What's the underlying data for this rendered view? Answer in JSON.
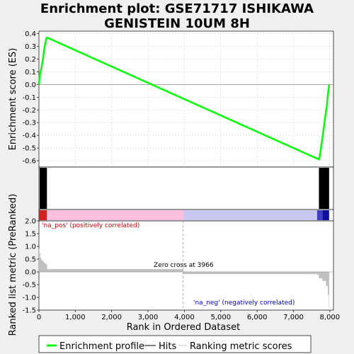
{
  "title_line1": "Enrichment plot: GSE71717 ISHIKAWA",
  "title_line2": "GENISTEIN 10UM 8H",
  "chart_data": [
    {
      "type": "line",
      "panel": "enrichment",
      "ylabel": "Enrichment score (ES)",
      "ylim": [
        -0.65,
        0.42
      ],
      "yticks": [
        "0.4",
        "0.3",
        "0.2",
        "0.1",
        "0.0",
        "-0.1",
        "-0.2",
        "-0.3",
        "-0.4",
        "-0.5",
        "-0.6"
      ],
      "ytick_values": [
        0.4,
        0.3,
        0.2,
        0.1,
        0.0,
        -0.1,
        -0.2,
        -0.3,
        -0.4,
        -0.5,
        -0.6
      ],
      "xlim": [
        0,
        8100
      ],
      "color": "#00ff00",
      "series": [
        {
          "name": "Enrichment profile",
          "x": [
            0,
            20,
            40,
            60,
            80,
            100,
            120,
            140,
            160,
            180,
            200,
            220,
            7700,
            7720,
            7740,
            7760,
            7780,
            7800,
            7820,
            7840,
            7860,
            7880,
            7900,
            7920,
            7940,
            7960,
            7980
          ],
          "y": [
            0.0,
            0.06,
            0.1,
            0.12,
            0.15,
            0.18,
            0.22,
            0.27,
            0.3,
            0.33,
            0.36,
            0.37,
            -0.59,
            -0.57,
            -0.53,
            -0.49,
            -0.45,
            -0.41,
            -0.37,
            -0.33,
            -0.28,
            -0.24,
            -0.2,
            -0.16,
            -0.1,
            -0.05,
            0.0
          ]
        }
      ],
      "grid": true
    },
    {
      "type": "bar",
      "panel": "hits",
      "hit_blocks_x": [
        [
          20,
          220
        ],
        [
          7700,
          7980
        ]
      ],
      "hit_color": "#000000"
    },
    {
      "type": "heatmap",
      "panel": "rank-colorbar",
      "segments": [
        {
          "from": 0,
          "to": 220,
          "color": "#d02020"
        },
        {
          "from": 220,
          "to": 3966,
          "color": "#ffc0e0"
        },
        {
          "from": 3966,
          "to": 7650,
          "color": "#c8c8f0"
        },
        {
          "from": 7650,
          "to": 7800,
          "color": "#4040c0"
        },
        {
          "from": 7800,
          "to": 7980,
          "color": "#1010a0"
        }
      ]
    },
    {
      "type": "area",
      "panel": "ranked-metric",
      "ylabel": "Ranked list metric (PreRanked)",
      "xlabel": "Rank in Ordered Dataset",
      "ylim": [
        -1.5,
        2.0
      ],
      "yticks": [
        "2.0",
        "1.5",
        "1.0",
        "0.5",
        "0.0",
        "-0.5",
        "-1.0",
        "-1.5"
      ],
      "ytick_values": [
        2.0,
        1.5,
        1.0,
        0.5,
        0.0,
        -0.5,
        -1.0,
        -1.5
      ],
      "xlim": [
        0,
        8100
      ],
      "xticks": [
        "0",
        "1,000",
        "2,000",
        "3,000",
        "4,000",
        "5,000",
        "6,000",
        "7,000",
        "8,000"
      ],
      "xtick_values": [
        0,
        1000,
        2000,
        3000,
        4000,
        5000,
        6000,
        7000,
        8000
      ],
      "color": "#c0c0c0",
      "x": [
        0,
        10,
        30,
        60,
        100,
        150,
        200,
        220,
        240,
        3966,
        3970,
        7650,
        7700,
        7800,
        7900,
        7950,
        7980
      ],
      "y": [
        0.9,
        0.75,
        0.55,
        0.45,
        0.38,
        0.32,
        0.28,
        0.12,
        0.1,
        0.07,
        -0.08,
        -0.1,
        -0.25,
        -0.35,
        -0.55,
        -0.9,
        -1.4
      ],
      "zero_cross": 3966,
      "zero_cross_label": "Zero cross at 3966",
      "pos_label": "'na_pos' (positively correlated)",
      "neg_label": "'na_neg' (negatively correlated)",
      "pos_color": "#cc0000",
      "neg_color": "#0000cc"
    }
  ],
  "legend": {
    "items": [
      {
        "label": "Enrichment profile",
        "color": "#00ff00"
      },
      {
        "label": "Hits",
        "color": "#000000"
      },
      {
        "label": "Ranking metric scores",
        "color": "#c0c0c0"
      }
    ]
  }
}
